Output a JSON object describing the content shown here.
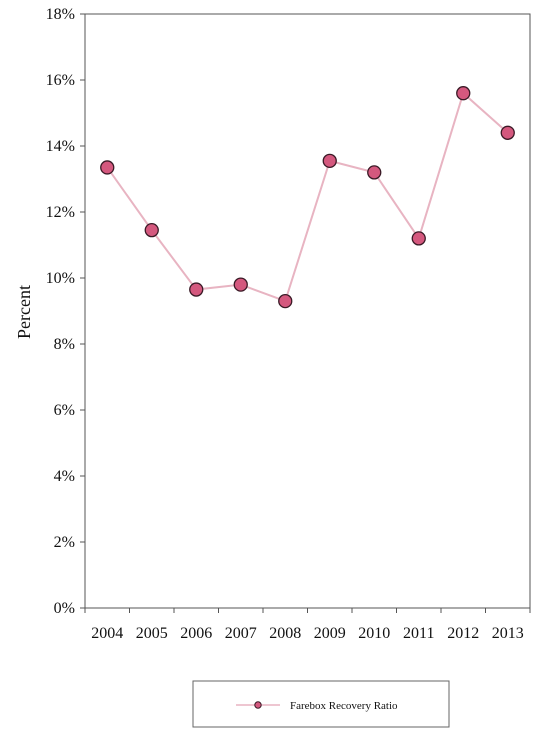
{
  "chart_data": {
    "type": "line",
    "title": "",
    "xlabel": "",
    "ylabel": "Percent",
    "categories": [
      "2004",
      "2005",
      "2006",
      "2007",
      "2008",
      "2009",
      "2010",
      "2011",
      "2012",
      "2013"
    ],
    "series": [
      {
        "name": "Farebox Recovery Ratio",
        "values": [
          13.35,
          11.45,
          9.65,
          9.8,
          9.3,
          13.55,
          13.2,
          11.2,
          15.6,
          14.4
        ]
      }
    ],
    "ylim": [
      0,
      18
    ],
    "yticks": [
      0,
      2,
      4,
      6,
      8,
      10,
      12,
      14,
      16,
      18
    ],
    "ytick_labels": [
      "0%",
      "2%",
      "4%",
      "6%",
      "8%",
      "10%",
      "12%",
      "14%",
      "16%",
      "18%"
    ],
    "grid": false,
    "legend_position": "bottom",
    "colors": {
      "line": "#e8b4c2",
      "marker_fill": "#d4587e",
      "marker_stroke": "#3a1a26",
      "axis": "#555555"
    }
  }
}
